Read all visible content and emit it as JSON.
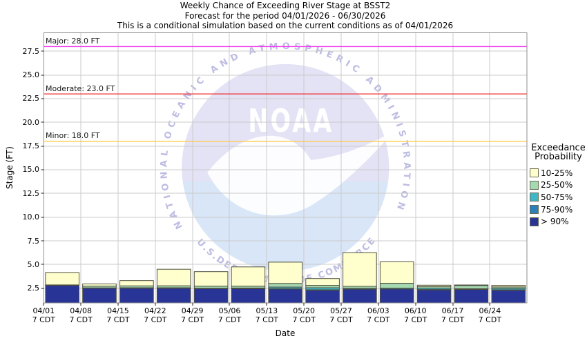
{
  "figure": {
    "title_lines": [
      "Weekly Chance of Exceeding River Stage at BSST2",
      "Forecast for the period 04/01/2026 - 06/30/2026",
      "This is a conditional simulation based on the current conditions as of 04/01/2026"
    ]
  },
  "chart_data": {
    "type": "bar",
    "stacked": true,
    "title": "Weekly Chance of Exceeding River Stage at BSST2",
    "subtitle": "Forecast for the period 04/01/2026 - 06/30/2026",
    "note": "This is a conditional simulation based on the current conditions as of 04/01/2026",
    "xlabel": "Date",
    "ylabel": "Stage (FT)",
    "units": "FT",
    "grid": true,
    "legend_position": "right",
    "ylim": [
      0.95,
      29.45
    ],
    "yticks": [
      2.5,
      5.0,
      7.5,
      10.0,
      12.5,
      15.0,
      17.5,
      20.0,
      22.5,
      25.0,
      27.5
    ],
    "baseline_value": 0.95,
    "categories": [
      "04/01",
      "04/08",
      "04/15",
      "04/22",
      "04/29",
      "05/06",
      "05/13",
      "05/20",
      "05/27",
      "06/03",
      "06/10",
      "06/17",
      "06/24"
    ],
    "x_tick_line2": "7 CDT",
    "series_note": "values are the stage (FT) at the top of each stacked probability band, bottom band starts at axis bottom",
    "series": [
      {
        "name": "> 90%",
        "color": "#283597",
        "tops": [
          2.8,
          2.5,
          2.5,
          2.5,
          2.45,
          2.45,
          2.42,
          2.28,
          2.4,
          2.42,
          2.32,
          2.38,
          2.28
        ]
      },
      {
        "name": "75-90%",
        "color": "#2c7fb8",
        "tops": [
          2.8,
          2.5,
          2.5,
          2.5,
          2.45,
          2.45,
          2.45,
          2.33,
          2.4,
          2.42,
          2.36,
          2.38,
          2.33
        ]
      },
      {
        "name": "50-75%",
        "color": "#41b6c4",
        "tops": [
          2.8,
          2.54,
          2.55,
          2.55,
          2.5,
          2.52,
          2.62,
          2.55,
          2.5,
          2.52,
          2.52,
          2.45,
          2.5
        ]
      },
      {
        "name": "25-50%",
        "color": "#a5d9b2",
        "tops": [
          2.85,
          2.72,
          2.75,
          2.75,
          2.72,
          2.72,
          3.0,
          2.8,
          2.7,
          3.02,
          2.68,
          2.78,
          2.64
        ]
      },
      {
        "name": "10-25%",
        "color": "#ffffce",
        "tops": [
          4.15,
          2.95,
          3.3,
          4.5,
          4.25,
          4.75,
          5.25,
          3.52,
          6.25,
          5.28,
          2.82,
          2.84,
          2.8
        ]
      }
    ],
    "thresholds": [
      {
        "name": "Major",
        "value": 28.0,
        "label": "Major: 28.0 FT",
        "color": "#f042f0"
      },
      {
        "name": "Moderate",
        "value": 23.0,
        "label": "Moderate: 23.0 FT",
        "color": "#f22c2c"
      },
      {
        "name": "Minor",
        "value": 18.0,
        "label": "Minor: 18.0 FT",
        "color": "#ffc838"
      }
    ],
    "legend": {
      "title_lines": [
        "Exceedance",
        "Probability"
      ],
      "items": [
        {
          "label": "10-25%",
          "color": "#ffffce"
        },
        {
          "label": "25-50%",
          "color": "#a5d9b2"
        },
        {
          "label": "50-75%",
          "color": "#41b6c4"
        },
        {
          "label": "75-90%",
          "color": "#2c7fb8"
        },
        {
          "label": "> 90%",
          "color": "#283597"
        }
      ]
    }
  },
  "watermark": {
    "org_abbrev": "NOAA",
    "arc_top": "NATIONAL OCEANIC AND ATMOSPHERIC ADMINISTRATION",
    "arc_bottom": "U.S.DEPARTMENT OF COMMERCE",
    "circle_color": "#d9e6f7",
    "upper_color": "#e4e2f5",
    "arc_text_color": "#bdbce2"
  }
}
